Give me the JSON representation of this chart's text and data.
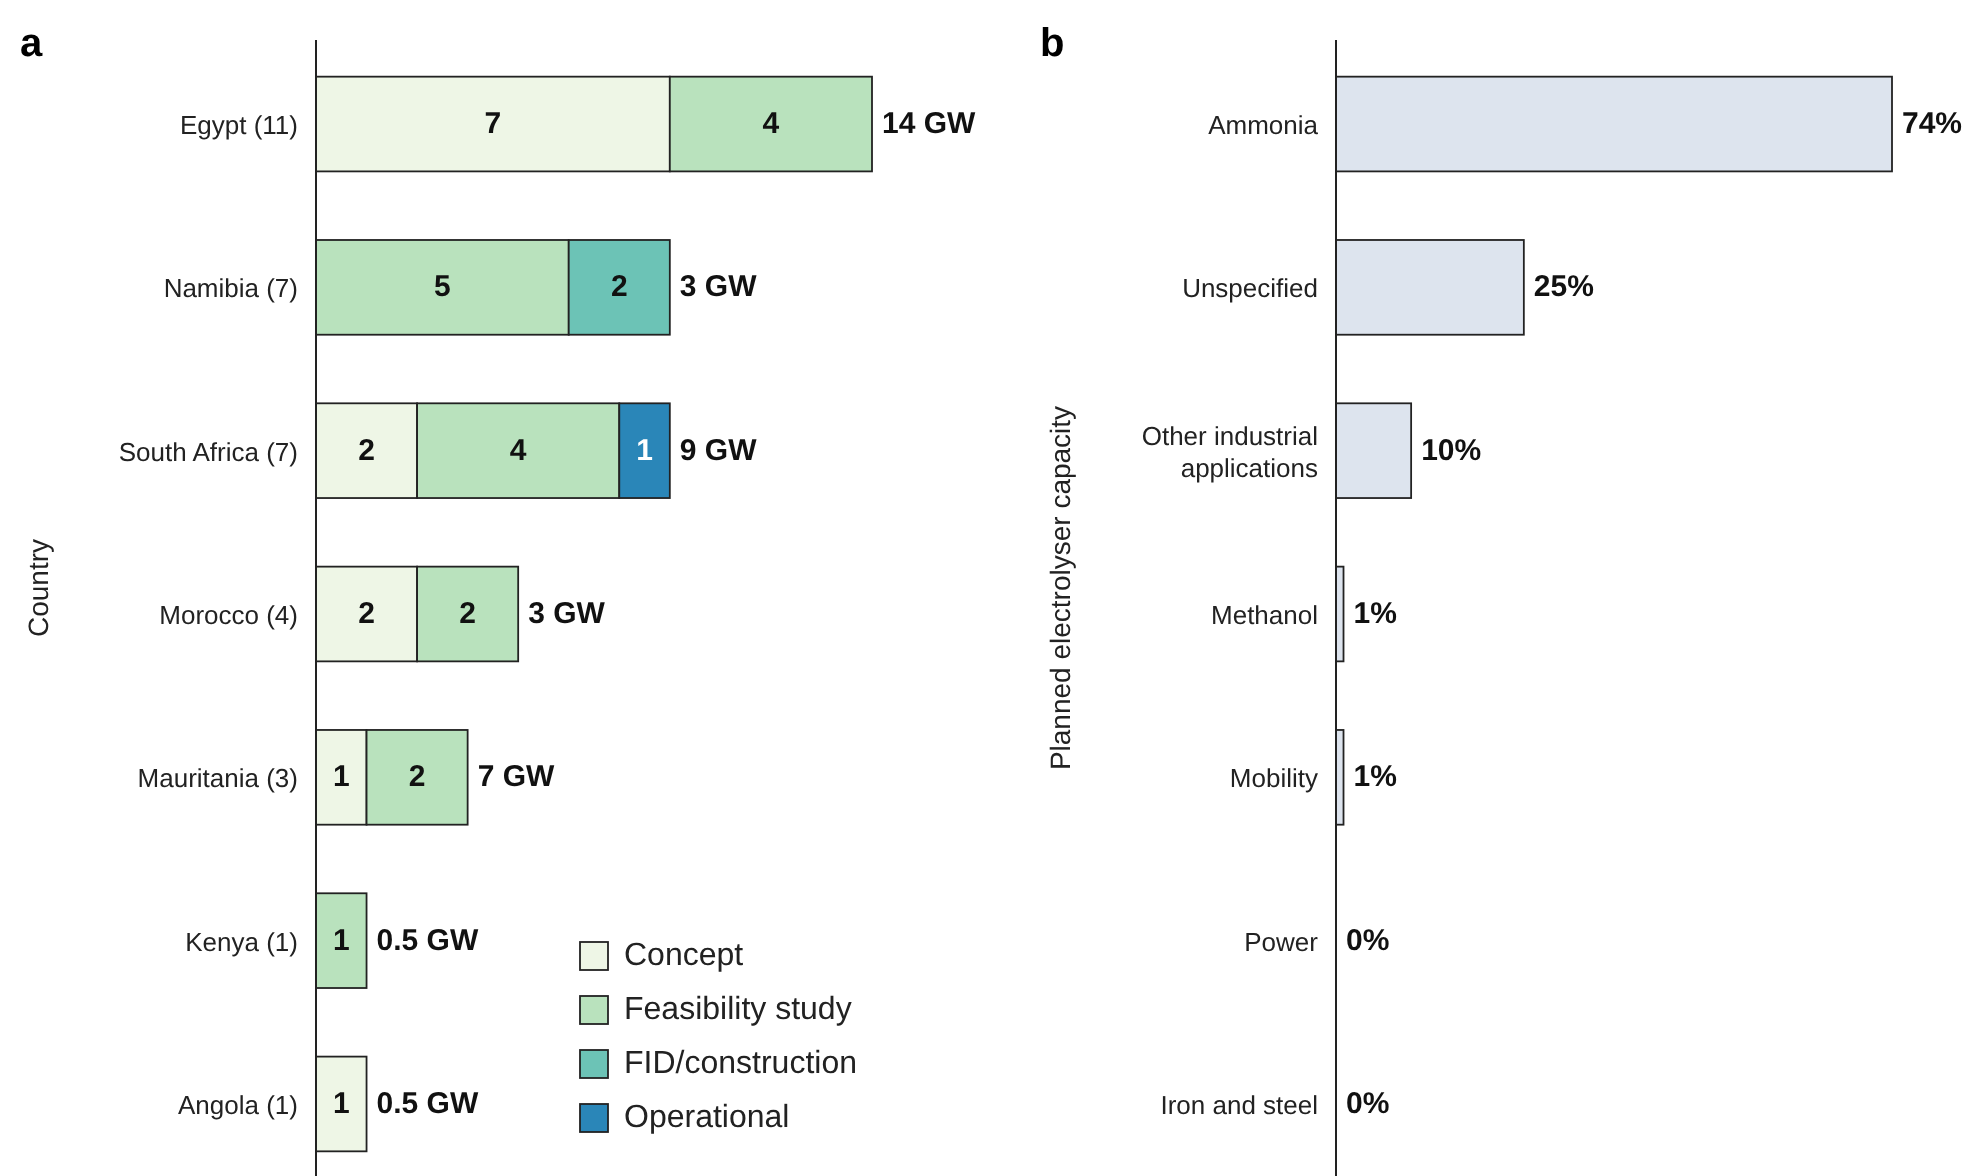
{
  "chart_data": [
    {
      "type": "bar",
      "title": "a",
      "ylabel": "Country",
      "orientation": "horizontal",
      "stacked": true,
      "data_labels": true,
      "legend": "bottom right",
      "categories": [
        "Egypt (11)",
        "Namibia (7)",
        "South Africa (7)",
        "Morocco (4)",
        "Mauritania (3)",
        "Kenya (1)",
        "Angola (1)"
      ],
      "series": [
        {
          "name": "Concept",
          "color": "#eef6e6",
          "values": [
            7,
            null,
            2,
            2,
            1,
            null,
            1
          ]
        },
        {
          "name": "Feasibility study",
          "color": "#b9e2bd",
          "values": [
            4,
            5,
            4,
            2,
            2,
            1,
            null
          ]
        },
        {
          "name": "FID/construction",
          "color": "#6cc3b6",
          "values": [
            null,
            2,
            null,
            null,
            null,
            null,
            null
          ]
        },
        {
          "name": "Operational",
          "color": "#2a86b8",
          "values": [
            null,
            null,
            1,
            null,
            null,
            null,
            null
          ]
        }
      ],
      "annotations": [
        {
          "text": "14 GW",
          "x": 11,
          "y": "Egypt (11)"
        },
        {
          "text": "3 GW",
          "x": 7,
          "y": "Namibia (7)"
        },
        {
          "text": "9 GW",
          "x": 7,
          "y": "South Africa (7)"
        },
        {
          "text": "3 GW",
          "x": 4,
          "y": "Morocco (4)"
        },
        {
          "text": "7 GW",
          "x": 3,
          "y": "Mauritania (3)"
        },
        {
          "text": "0.5 GW",
          "x": 1,
          "y": "Kenya (1)"
        },
        {
          "text": "0.5 GW",
          "x": 1,
          "y": "Angola (1)"
        }
      ]
    },
    {
      "type": "bar",
      "title": "b",
      "ylabel": "Planned electrolyser capacity",
      "orientation": "horizontal",
      "color": "#dde4ee",
      "categories": [
        "Ammonia",
        "Unspecified",
        "Other industrial applications",
        "Methanol",
        "Mobility",
        "Power",
        "Iron and steel"
      ],
      "values": [
        74,
        25,
        10,
        1,
        1,
        0,
        0
      ],
      "value_labels": [
        "74%",
        "25%",
        "10%",
        "1%",
        "1%",
        "0%",
        "0%"
      ]
    }
  ]
}
